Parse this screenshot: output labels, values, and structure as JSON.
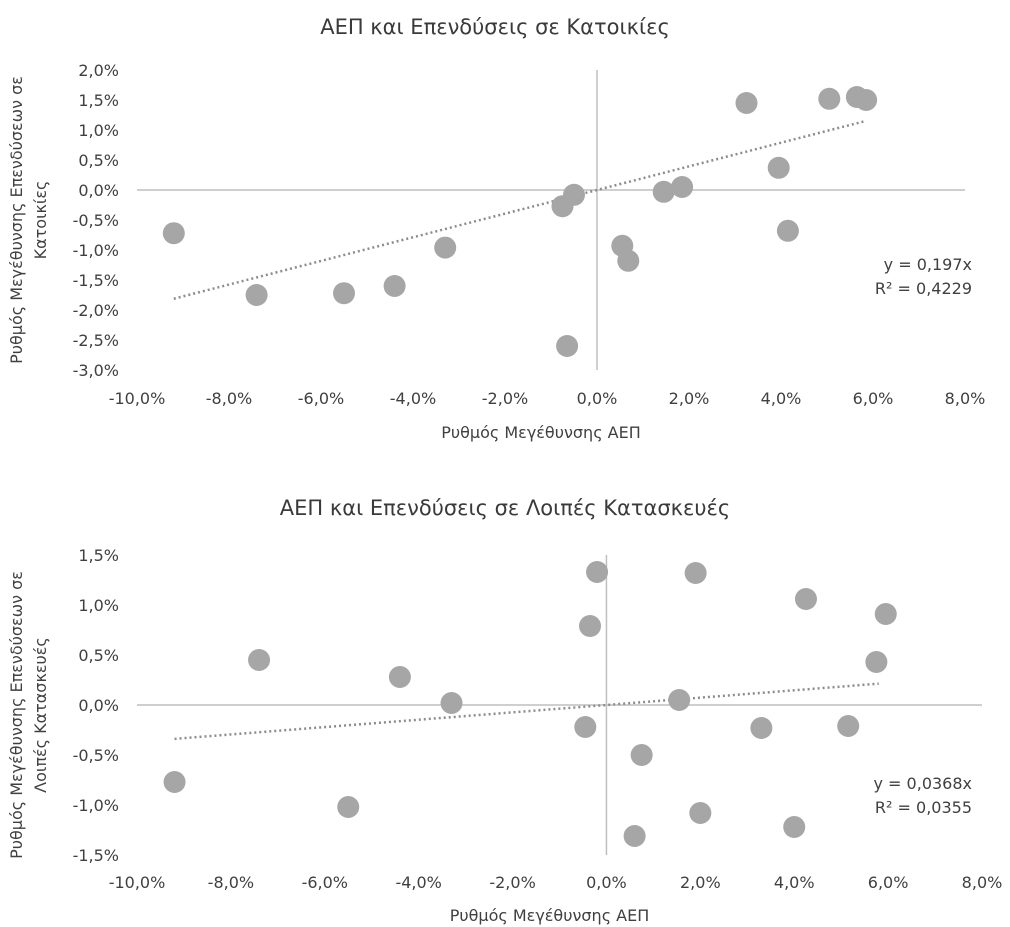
{
  "chart_data": [
    {
      "type": "scatter",
      "title": "ΑΕΠ και Επενδύσεις σε Κατοικίες",
      "xlabel": "Ρυθμός Μεγέθυνσης ΑΕΠ",
      "ylabel_lines": [
        "Ρυθμός Μεγέθυνσης Επενδύσεων σε",
        "Κατοικίες"
      ],
      "xlim": [
        -0.1,
        0.08
      ],
      "ylim": [
        -0.03,
        0.02
      ],
      "x_ticks": [
        -0.1,
        -0.08,
        -0.06,
        -0.04,
        -0.02,
        0.0,
        0.02,
        0.04,
        0.06,
        0.08
      ],
      "x_tick_labels": [
        "-10,0%",
        "-8,0%",
        "-6,0%",
        "-4,0%",
        "-2,0%",
        "0,0%",
        "2,0%",
        "4,0%",
        "6,0%",
        "8,0%"
      ],
      "y_ticks": [
        0.02,
        0.015,
        0.01,
        0.005,
        0.0,
        -0.005,
        -0.01,
        -0.015,
        -0.02,
        -0.025,
        -0.03
      ],
      "y_tick_labels": [
        "2,0%",
        "1,5%",
        "1,0%",
        "0,5%",
        "0,0%",
        "-0,5%",
        "-1,0%",
        "-1,5%",
        "-2,0%",
        "-2,5%",
        "-3,0%"
      ],
      "points": [
        [
          -0.092,
          -0.0072
        ],
        [
          -0.074,
          -0.0175
        ],
        [
          -0.055,
          -0.0172
        ],
        [
          -0.044,
          -0.016
        ],
        [
          -0.033,
          -0.0096
        ],
        [
          -0.0065,
          -0.026
        ],
        [
          -0.0075,
          -0.0027
        ],
        [
          -0.005,
          -0.0008
        ],
        [
          0.0055,
          -0.0093
        ],
        [
          0.0068,
          -0.0118
        ],
        [
          0.0145,
          -0.0003
        ],
        [
          0.0185,
          0.0005
        ],
        [
          0.0325,
          0.0145
        ],
        [
          0.0395,
          0.0037
        ],
        [
          0.0415,
          -0.0068
        ],
        [
          0.0505,
          0.0152
        ],
        [
          0.0565,
          0.0155
        ],
        [
          0.0585,
          0.015
        ]
      ],
      "trendline": {
        "slope": 0.197,
        "x_range": [
          -0.092,
          0.058
        ]
      },
      "equation": "y = 0,197x",
      "r_squared": "R² = 0,4229",
      "grid": false,
      "legend": "none",
      "point_color": "#a6a6a6",
      "trend_color": "#8c8c8c"
    },
    {
      "type": "scatter",
      "title": "ΑΕΠ και Επενδύσεις σε Λοιπές Κατασκευές",
      "xlabel": "Ρυθμός Μεγέθυνσης ΑΕΠ",
      "ylabel_lines": [
        "Ρυθμός Μεγέθυνσης Επενδύσεων σε",
        "Λοιπές Κατασκευές"
      ],
      "xlim": [
        -0.1,
        0.08
      ],
      "ylim": [
        -0.015,
        0.015
      ],
      "x_ticks": [
        -0.1,
        -0.08,
        -0.06,
        -0.04,
        -0.02,
        0.0,
        0.02,
        0.04,
        0.06,
        0.08
      ],
      "x_tick_labels": [
        "-10,0%",
        "-8,0%",
        "-6,0%",
        "-4,0%",
        "-2,0%",
        "0,0%",
        "2,0%",
        "4,0%",
        "6,0%",
        "8,0%"
      ],
      "y_ticks": [
        0.015,
        0.01,
        0.005,
        0.0,
        -0.005,
        -0.01,
        -0.015
      ],
      "y_tick_labels": [
        "1,5%",
        "1,0%",
        "0,5%",
        "0,0%",
        "-0,5%",
        "-1,0%",
        "-1,5%"
      ],
      "points": [
        [
          -0.092,
          -0.0077
        ],
        [
          -0.074,
          0.0045
        ],
        [
          -0.055,
          -0.0102
        ],
        [
          -0.044,
          0.0028
        ],
        [
          -0.033,
          0.0002
        ],
        [
          -0.0045,
          -0.0022
        ],
        [
          -0.0035,
          0.0079
        ],
        [
          -0.002,
          0.0133
        ],
        [
          0.006,
          -0.0131
        ],
        [
          0.0075,
          -0.005
        ],
        [
          0.0155,
          0.0005
        ],
        [
          0.019,
          0.0132
        ],
        [
          0.02,
          -0.0108
        ],
        [
          0.033,
          -0.0023
        ],
        [
          0.04,
          -0.0122
        ],
        [
          0.0425,
          0.0106
        ],
        [
          0.0515,
          -0.0021
        ],
        [
          0.0575,
          0.0043
        ],
        [
          0.0595,
          0.0091
        ]
      ],
      "trendline": {
        "slope": 0.0368,
        "x_range": [
          -0.092,
          0.058
        ]
      },
      "equation": "y = 0,0368x",
      "r_squared": "R² = 0,0355",
      "grid": false,
      "legend": "none",
      "point_color": "#a6a6a6",
      "trend_color": "#8c8c8c"
    }
  ]
}
